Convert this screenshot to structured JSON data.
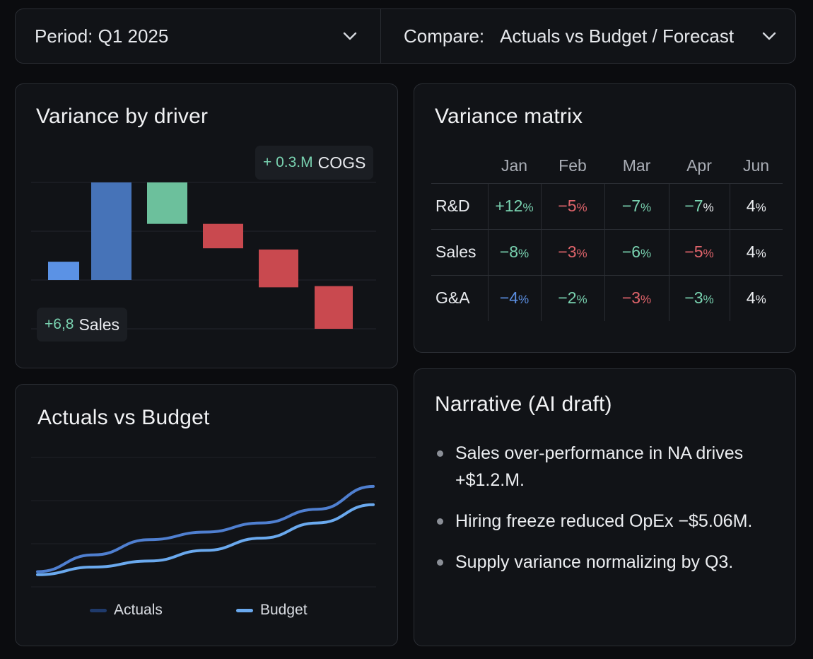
{
  "filters": {
    "period": "Period: Q1 2025",
    "compare_label": "Compare:",
    "compare_value": "Actuals vs Budget / Forecast"
  },
  "driver_chart": {
    "title": "Variance by driver",
    "tags": {
      "cogs_value": "+ 0.3.M",
      "cogs_label": "COGS",
      "sales_value": "+6,8",
      "sales_label": "Sales"
    },
    "chart_data": {
      "type": "bar",
      "subtype": "waterfall",
      "title": "Variance by driver",
      "bars": [
        {
          "start": 0.0,
          "end": 0.75,
          "color": "#5b92e5"
        },
        {
          "start": 0.0,
          "end": 4.0,
          "color": "#4673b8"
        },
        {
          "start": 4.0,
          "end": 2.3,
          "color": "#6cc09c"
        },
        {
          "start": 2.3,
          "end": 1.3,
          "color": "#c9494f"
        },
        {
          "start": 1.25,
          "end": -0.3,
          "color": "#c9494f"
        },
        {
          "start": -0.25,
          "end": -2.0,
          "color": "#c9494f"
        }
      ],
      "ylim": [
        -2.0,
        4.0
      ],
      "grid": true
    }
  },
  "matrix": {
    "title": "Variance matrix",
    "columns": [
      "Jan",
      "Feb",
      "Mar",
      "Apr",
      "Jun"
    ],
    "rows": [
      {
        "label": "R&D",
        "cells": [
          {
            "num": "+12",
            "pct": "%",
            "color": "green"
          },
          {
            "num": "−5",
            "pct": "%",
            "color": "red"
          },
          {
            "num": "−7",
            "pct": "%",
            "color": "green"
          },
          {
            "num": "−7",
            "pct": "%",
            "color": "green-white"
          },
          {
            "num": "4",
            "pct": "%",
            "color": "white"
          }
        ]
      },
      {
        "label": "Sales",
        "cells": [
          {
            "num": "−8",
            "pct": "%",
            "color": "green"
          },
          {
            "num": "−3",
            "pct": "%",
            "color": "red"
          },
          {
            "num": "−6",
            "pct": "%",
            "color": "green"
          },
          {
            "num": "−5",
            "pct": "%",
            "color": "red"
          },
          {
            "num": "4",
            "pct": "%",
            "color": "white"
          }
        ]
      },
      {
        "label": "G&A",
        "cells": [
          {
            "num": "−4",
            "pct": "%",
            "color": "blue"
          },
          {
            "num": "−2",
            "pct": "%",
            "color": "green"
          },
          {
            "num": "−3",
            "pct": "%",
            "color": "red"
          },
          {
            "num": "−3",
            "pct": "%",
            "color": "green"
          },
          {
            "num": "4",
            "pct": "%",
            "color": "white"
          }
        ]
      }
    ]
  },
  "avb_chart": {
    "title": "Actuals vs Budget",
    "legend": {
      "actuals": "Actuals",
      "budget": "Budget"
    },
    "colors": {
      "actuals": "#4f7fd0",
      "budget": "#6aa9ee",
      "legend_actuals": "#1f3a6b"
    },
    "chart_data": {
      "type": "line",
      "title": "Actuals vs Budget",
      "x": [
        0,
        1,
        2,
        3,
        4,
        5,
        6
      ],
      "series": [
        {
          "name": "Actuals",
          "values": [
            1.0,
            2.1,
            3.1,
            3.6,
            4.2,
            5.1,
            6.6
          ]
        },
        {
          "name": "Budget",
          "values": [
            0.8,
            1.3,
            1.7,
            2.4,
            3.2,
            4.2,
            5.4
          ]
        }
      ],
      "ylim": [
        0,
        8.5
      ],
      "grid": true,
      "legend_position": "bottom"
    }
  },
  "narrative": {
    "title": "Narrative (AI draft)",
    "items": [
      "Sales over-performance in NA drives +$1.2.M.",
      "Hiring freeze reduced OpEx −$5.06M.",
      "Supply variance normalizing by Q3."
    ]
  }
}
